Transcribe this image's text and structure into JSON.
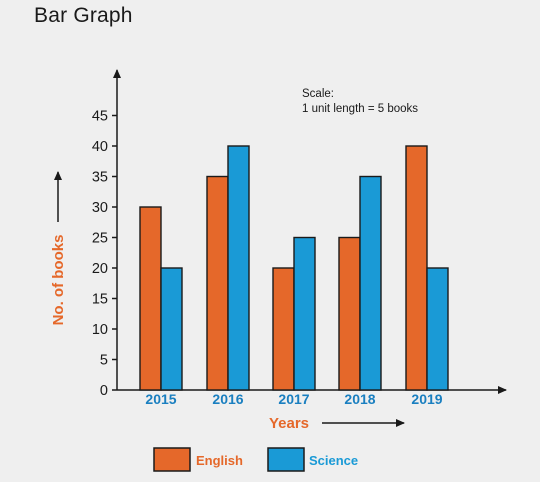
{
  "page": {
    "title": "Bar Graph"
  },
  "scale_note": {
    "line1": "Scale:",
    "line2": "1 unit length = 5 books"
  },
  "colors": {
    "english": "#e5682a",
    "science": "#1a9ad6",
    "axis": "#1a1a1a",
    "label": "#e5682a",
    "tick": "#1a7fc0"
  },
  "chart_data": {
    "type": "bar",
    "xlabel": "Years",
    "ylabel": "No. of books",
    "categories": [
      "2015",
      "2016",
      "2017",
      "2018",
      "2019"
    ],
    "series": [
      {
        "name": "English",
        "values": [
          30,
          35,
          20,
          25,
          40
        ]
      },
      {
        "name": "Science",
        "values": [
          20,
          40,
          25,
          35,
          20
        ]
      }
    ],
    "ylim": [
      0,
      45
    ],
    "yticks": [
      0,
      5,
      10,
      15,
      20,
      25,
      30,
      35,
      40,
      45
    ],
    "grid": false,
    "legend_position": "bottom"
  }
}
